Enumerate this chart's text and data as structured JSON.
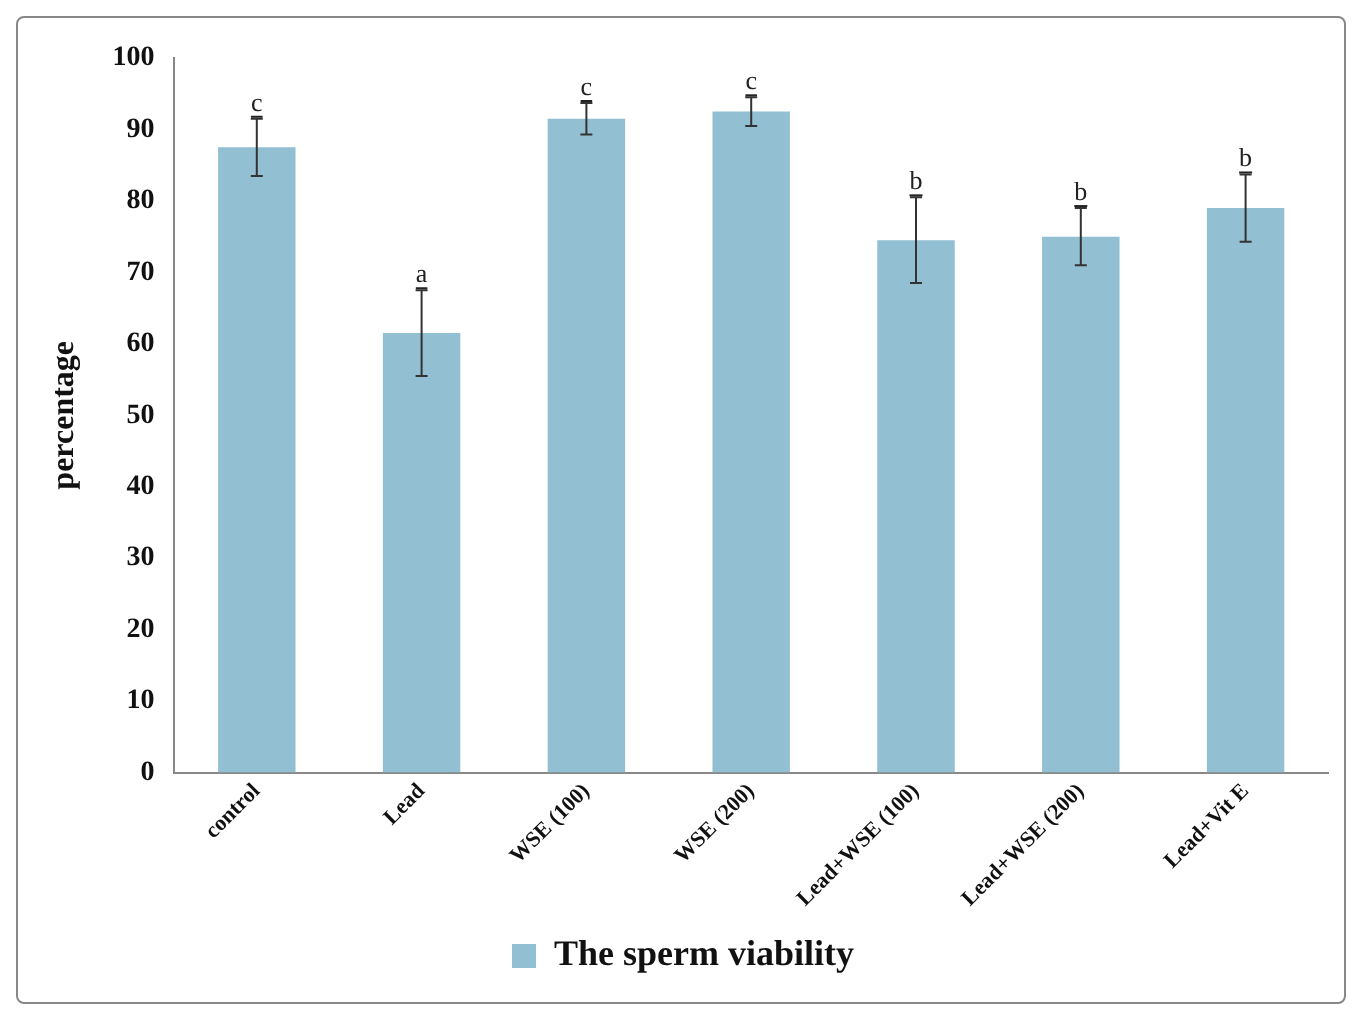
{
  "chart_data": {
    "type": "bar",
    "ylabel": "percentage",
    "categories": [
      "control",
      "Lead",
      "WSE (100)",
      "WSE (200)",
      "Lead+WSE (100)",
      "Lead+WSE (200)",
      "Lead+Vit E"
    ],
    "series": [
      {
        "name": "The sperm viability",
        "color": "#93bfd3",
        "values": [
          87.5,
          61.5,
          91.5,
          92.5,
          74.5,
          75,
          79
        ],
        "errors": [
          4,
          6,
          2.2,
          2,
          6,
          4,
          4.7
        ]
      }
    ],
    "ylim": [
      0,
      100
    ],
    "yticks": [
      0,
      10,
      20,
      30,
      40,
      50,
      60,
      70,
      80,
      90,
      100
    ],
    "grid": false,
    "legend": "bottom",
    "annotations": [
      {
        "text": "c",
        "x": "control",
        "y": 91.5
      },
      {
        "text": "a",
        "x": "Lead",
        "y": 67.5
      },
      {
        "text": "c",
        "x": "WSE (100)",
        "y": 93.7
      },
      {
        "text": "c",
        "x": "WSE (200)",
        "y": 94.5
      },
      {
        "text": "b",
        "x": "Lead+WSE (100)",
        "y": 80.5
      },
      {
        "text": "b",
        "x": "Lead+WSE (200)",
        "y": 79
      },
      {
        "text": "b",
        "x": "Lead+Vit E",
        "y": 83.7
      }
    ]
  }
}
